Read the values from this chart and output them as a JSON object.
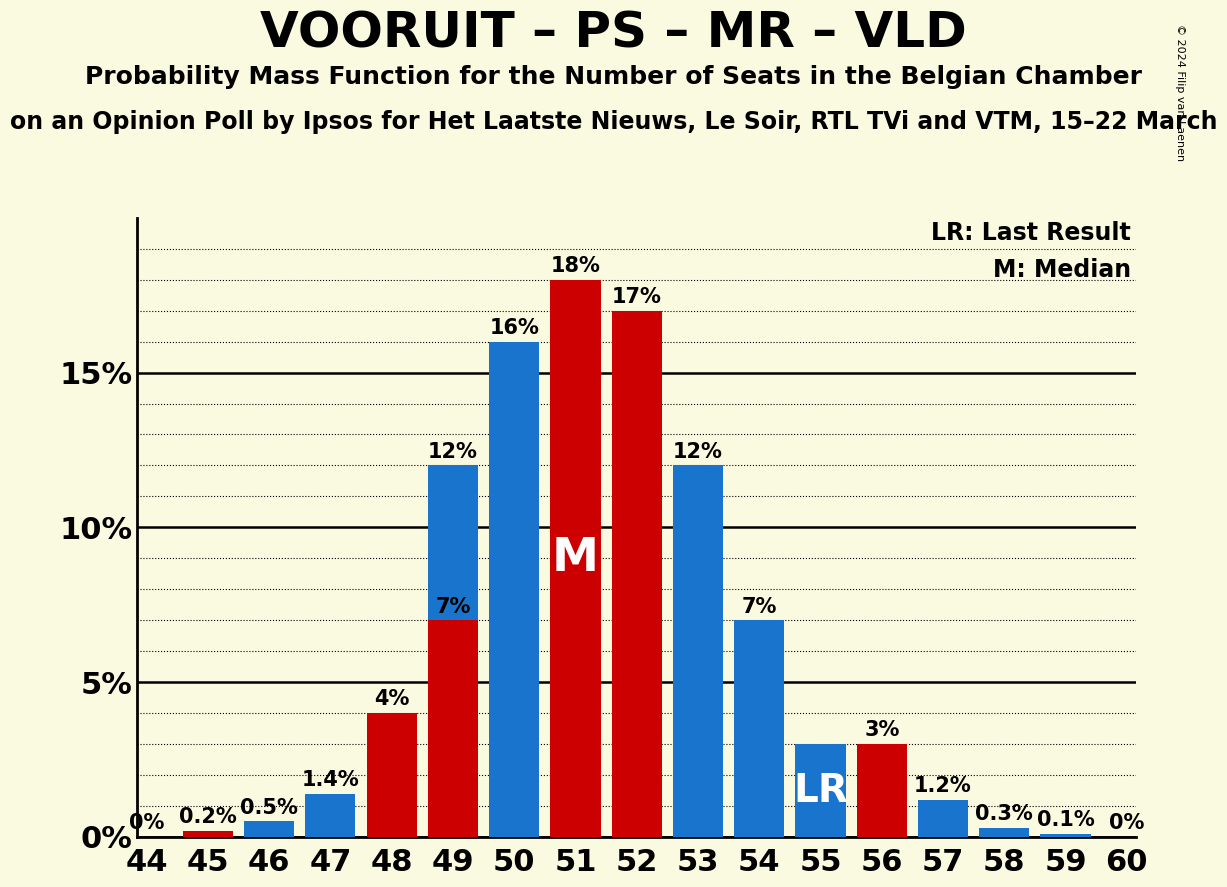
{
  "title": "VOORUIT – PS – MR – VLD",
  "subtitle1": "Probability Mass Function for the Number of Seats in the Belgian Chamber",
  "subtitle2": "on an Opinion Poll by Ipsos for Het Laatste Nieuws, Le Soir, RTL TVi and VTM, 15–22 March",
  "copyright": "© 2024 Filip van Laenen",
  "seats": [
    44,
    45,
    46,
    47,
    48,
    49,
    50,
    51,
    52,
    53,
    54,
    55,
    56,
    57,
    58,
    59,
    60
  ],
  "blue_values": [
    0.0,
    0.0,
    0.5,
    1.4,
    0.0,
    12.0,
    16.0,
    0.0,
    0.0,
    12.0,
    7.0,
    3.0,
    0.0,
    1.2,
    0.3,
    0.1,
    0.0
  ],
  "red_values": [
    0.001,
    0.2,
    0.0,
    0.0,
    4.0,
    7.0,
    0.0,
    18.0,
    17.0,
    0.0,
    0.0,
    0.0,
    3.0,
    0.0,
    0.0,
    0.0,
    0.0
  ],
  "blue_labels": [
    "",
    "",
    "0.5%",
    "1.4%",
    "",
    "12%",
    "16%",
    "",
    "",
    "12%",
    "7%",
    "",
    "",
    "1.2%",
    "0.3%",
    "0.1%",
    "0%"
  ],
  "red_labels": [
    "0%",
    "0.2%",
    "",
    "",
    "4%",
    "7%",
    "",
    "18%",
    "17%",
    "",
    "",
    "",
    "3%",
    "",
    "",
    "",
    ""
  ],
  "median_seat": 51,
  "lr_seat": 55,
  "background_color": "#FAFAE0",
  "blue_color": "#1874CD",
  "red_color": "#CC0000",
  "yticks": [
    0,
    5,
    10,
    15
  ],
  "ylim": [
    0,
    20
  ],
  "title_fontsize": 36,
  "subtitle_fontsize": 18,
  "label_fontsize": 15,
  "tick_fontsize": 22
}
